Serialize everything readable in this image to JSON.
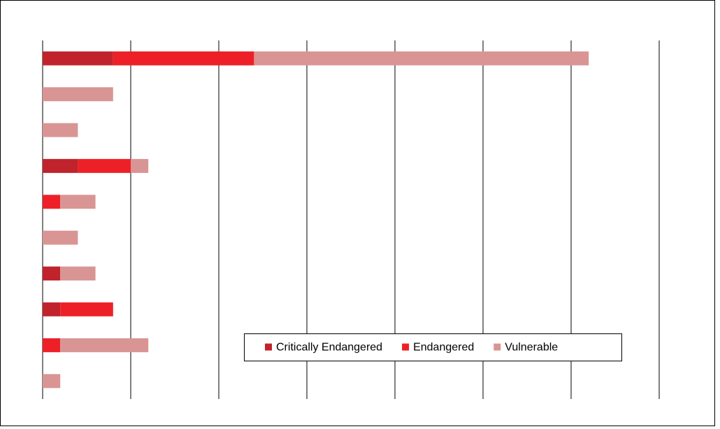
{
  "chart_data": {
    "type": "stacked_barh",
    "categories": [
      null,
      null,
      null,
      null,
      null,
      null,
      null,
      null,
      null,
      null
    ],
    "series": [
      {
        "name": "Critically Endangered",
        "color": "#c0232c",
        "values": [
          4,
          0,
          0,
          2,
          0,
          0,
          1,
          1,
          0,
          0
        ]
      },
      {
        "name": "Endangered",
        "color": "#ee2027",
        "values": [
          8,
          0,
          0,
          3,
          1,
          0,
          0,
          3,
          1,
          0
        ]
      },
      {
        "name": "Vulnerable",
        "color": "#d99594",
        "values": [
          19,
          4,
          2,
          1,
          2,
          2,
          2,
          0,
          5,
          1
        ]
      }
    ],
    "xlim": [
      0,
      35
    ],
    "xticks": [
      0,
      5,
      10,
      15,
      20,
      25,
      30,
      35
    ],
    "grid": true,
    "legend": "lower right"
  }
}
